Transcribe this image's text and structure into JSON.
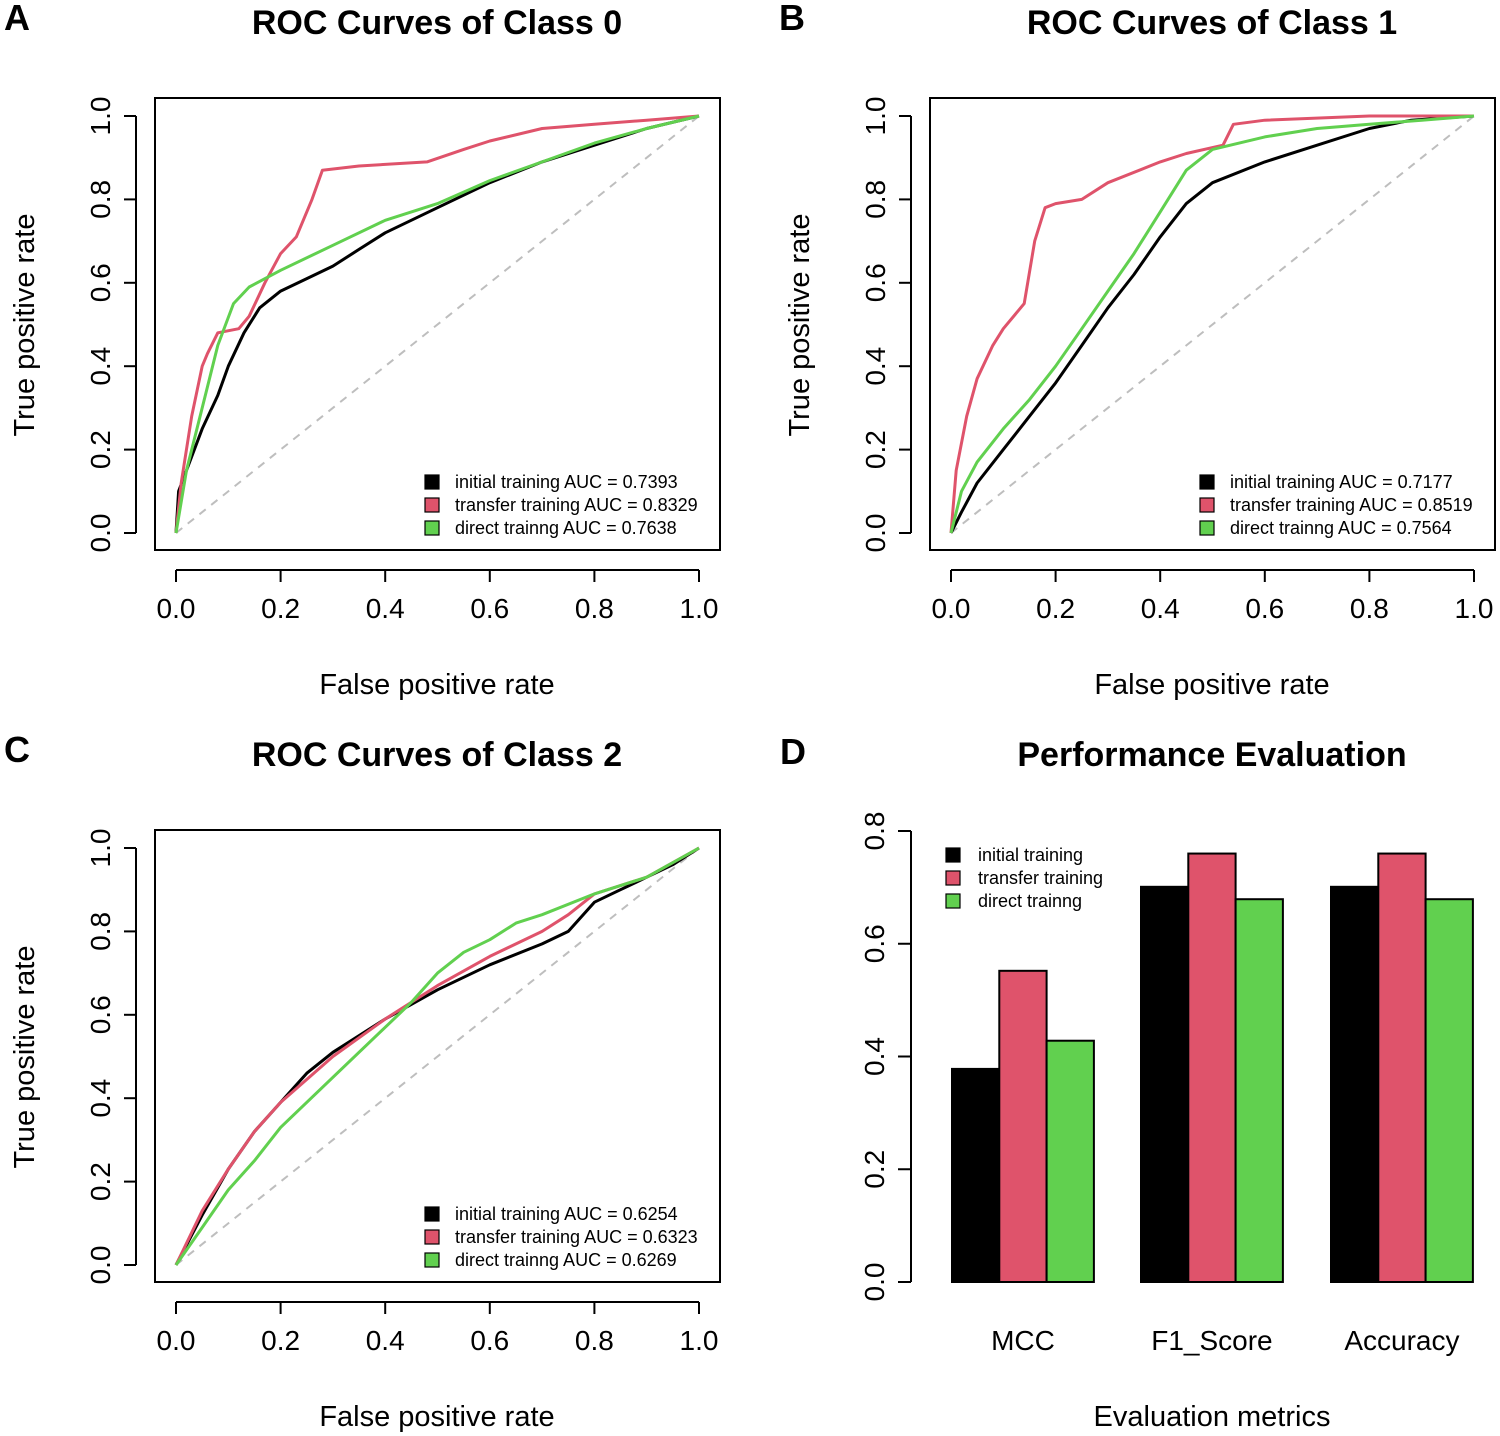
{
  "colors": {
    "initial": "#000000",
    "transfer": "#DF536B",
    "direct": "#61D04F",
    "diagonal": "#BEBEBE"
  },
  "chart_data": [
    {
      "panel": "A",
      "type": "line",
      "title": "ROC Curves of Class 0",
      "xlabel": "False positive rate",
      "ylabel": "True positive rate",
      "xlim": [
        0,
        1
      ],
      "ylim": [
        0,
        1
      ],
      "xticks": [
        "0.0",
        "0.2",
        "0.4",
        "0.6",
        "0.8",
        "1.0"
      ],
      "yticks": [
        "0.0",
        "0.2",
        "0.4",
        "0.6",
        "0.8",
        "1.0"
      ],
      "legend_position": "bottom-right",
      "series": [
        {
          "name": "initial training AUC = 0.7393",
          "key": "initial",
          "x": [
            0,
            0.005,
            0.02,
            0.05,
            0.08,
            0.1,
            0.13,
            0.16,
            0.2,
            0.25,
            0.3,
            0.35,
            0.4,
            0.5,
            0.6,
            0.7,
            0.8,
            0.9,
            1
          ],
          "y": [
            0,
            0.1,
            0.15,
            0.25,
            0.33,
            0.4,
            0.48,
            0.54,
            0.58,
            0.61,
            0.64,
            0.68,
            0.72,
            0.78,
            0.84,
            0.89,
            0.93,
            0.97,
            1
          ]
        },
        {
          "name": "transfer training AUC = 0.8329",
          "key": "transfer",
          "x": [
            0,
            0.01,
            0.03,
            0.05,
            0.06,
            0.08,
            0.12,
            0.14,
            0.17,
            0.2,
            0.23,
            0.26,
            0.28,
            0.35,
            0.48,
            0.55,
            0.6,
            0.7,
            0.8,
            0.9,
            1
          ],
          "y": [
            0,
            0.12,
            0.28,
            0.4,
            0.43,
            0.48,
            0.49,
            0.52,
            0.6,
            0.67,
            0.71,
            0.8,
            0.87,
            0.88,
            0.89,
            0.92,
            0.94,
            0.97,
            0.98,
            0.99,
            1
          ]
        },
        {
          "name": "direct trainng AUC = 0.7638",
          "key": "direct",
          "x": [
            0,
            0.02,
            0.05,
            0.08,
            0.11,
            0.14,
            0.2,
            0.3,
            0.4,
            0.5,
            0.6,
            0.7,
            0.8,
            0.9,
            1
          ],
          "y": [
            0,
            0.15,
            0.3,
            0.45,
            0.55,
            0.59,
            0.63,
            0.69,
            0.75,
            0.79,
            0.845,
            0.89,
            0.935,
            0.97,
            1
          ]
        }
      ]
    },
    {
      "panel": "B",
      "type": "line",
      "title": "ROC Curves of Class 1",
      "xlabel": "False positive rate",
      "ylabel": "True positive rate",
      "xlim": [
        0,
        1
      ],
      "ylim": [
        0,
        1
      ],
      "xticks": [
        "0.0",
        "0.2",
        "0.4",
        "0.6",
        "0.8",
        "1.0"
      ],
      "yticks": [
        "0.0",
        "0.2",
        "0.4",
        "0.6",
        "0.8",
        "1.0"
      ],
      "legend_position": "bottom-right",
      "series": [
        {
          "name": "initial training AUC = 0.7177",
          "key": "initial",
          "x": [
            0,
            0.02,
            0.05,
            0.1,
            0.15,
            0.2,
            0.25,
            0.3,
            0.35,
            0.4,
            0.45,
            0.5,
            0.6,
            0.7,
            0.8,
            0.88,
            1
          ],
          "y": [
            0,
            0.05,
            0.12,
            0.2,
            0.28,
            0.36,
            0.45,
            0.54,
            0.62,
            0.71,
            0.79,
            0.84,
            0.89,
            0.93,
            0.97,
            0.99,
            1
          ]
        },
        {
          "name": "transfer training AUC = 0.8519",
          "key": "transfer",
          "x": [
            0,
            0.01,
            0.03,
            0.05,
            0.08,
            0.1,
            0.14,
            0.16,
            0.18,
            0.2,
            0.25,
            0.3,
            0.4,
            0.45,
            0.52,
            0.54,
            0.6,
            0.8,
            1
          ],
          "y": [
            0,
            0.15,
            0.28,
            0.37,
            0.45,
            0.49,
            0.55,
            0.7,
            0.78,
            0.79,
            0.8,
            0.84,
            0.89,
            0.91,
            0.93,
            0.98,
            0.99,
            1,
            1
          ]
        },
        {
          "name": "direct trainng AUC = 0.7564",
          "key": "direct",
          "x": [
            0,
            0.02,
            0.05,
            0.1,
            0.15,
            0.2,
            0.25,
            0.3,
            0.35,
            0.4,
            0.45,
            0.5,
            0.6,
            0.7,
            0.8,
            0.9,
            1
          ],
          "y": [
            0,
            0.1,
            0.17,
            0.25,
            0.32,
            0.4,
            0.49,
            0.58,
            0.67,
            0.77,
            0.87,
            0.92,
            0.95,
            0.97,
            0.98,
            0.99,
            1
          ]
        }
      ]
    },
    {
      "panel": "C",
      "type": "line",
      "title": "ROC Curves of Class 2",
      "xlabel": "False positive rate",
      "ylabel": "True positive rate",
      "xlim": [
        0,
        1
      ],
      "ylim": [
        0,
        1
      ],
      "xticks": [
        "0.0",
        "0.2",
        "0.4",
        "0.6",
        "0.8",
        "1.0"
      ],
      "yticks": [
        "0.0",
        "0.2",
        "0.4",
        "0.6",
        "0.8",
        "1.0"
      ],
      "legend_position": "bottom-right",
      "series": [
        {
          "name": "initial training AUC = 0.6254",
          "key": "initial",
          "x": [
            0,
            0.05,
            0.1,
            0.15,
            0.2,
            0.25,
            0.3,
            0.4,
            0.5,
            0.6,
            0.7,
            0.75,
            0.8,
            0.85,
            0.9,
            0.95,
            1
          ],
          "y": [
            0,
            0.12,
            0.23,
            0.32,
            0.39,
            0.46,
            0.51,
            0.59,
            0.66,
            0.72,
            0.77,
            0.8,
            0.87,
            0.9,
            0.93,
            0.96,
            1
          ]
        },
        {
          "name": "transfer training AUC = 0.6323",
          "key": "transfer",
          "x": [
            0,
            0.05,
            0.1,
            0.15,
            0.2,
            0.3,
            0.4,
            0.5,
            0.6,
            0.7,
            0.75,
            0.8,
            0.9,
            1
          ],
          "y": [
            0,
            0.13,
            0.23,
            0.32,
            0.39,
            0.5,
            0.59,
            0.67,
            0.74,
            0.8,
            0.84,
            0.89,
            0.93,
            1
          ]
        },
        {
          "name": "direct trainng AUC = 0.6269",
          "key": "direct",
          "x": [
            0,
            0.05,
            0.1,
            0.15,
            0.2,
            0.3,
            0.4,
            0.45,
            0.5,
            0.55,
            0.6,
            0.65,
            0.7,
            0.8,
            0.9,
            1
          ],
          "y": [
            0,
            0.09,
            0.18,
            0.25,
            0.33,
            0.45,
            0.57,
            0.63,
            0.7,
            0.75,
            0.78,
            0.82,
            0.84,
            0.89,
            0.93,
            1
          ]
        }
      ]
    },
    {
      "panel": "D",
      "type": "bar",
      "title": "Performance Evaluation",
      "xlabel": "Evaluation metrics",
      "ylabel": "",
      "ylim": [
        0,
        0.8
      ],
      "yticks": [
        "0.0",
        "0.2",
        "0.4",
        "0.6",
        "0.8"
      ],
      "categories": [
        "MCC",
        "F1_Score",
        "Accuracy"
      ],
      "legend_position": "top-left",
      "series": [
        {
          "name": "initial training",
          "key": "initial",
          "values": [
            0.378,
            0.701,
            0.701
          ]
        },
        {
          "name": "transfer training",
          "key": "transfer",
          "values": [
            0.552,
            0.76,
            0.76
          ]
        },
        {
          "name": "direct trainng",
          "key": "direct",
          "values": [
            0.428,
            0.679,
            0.679
          ]
        }
      ]
    }
  ]
}
